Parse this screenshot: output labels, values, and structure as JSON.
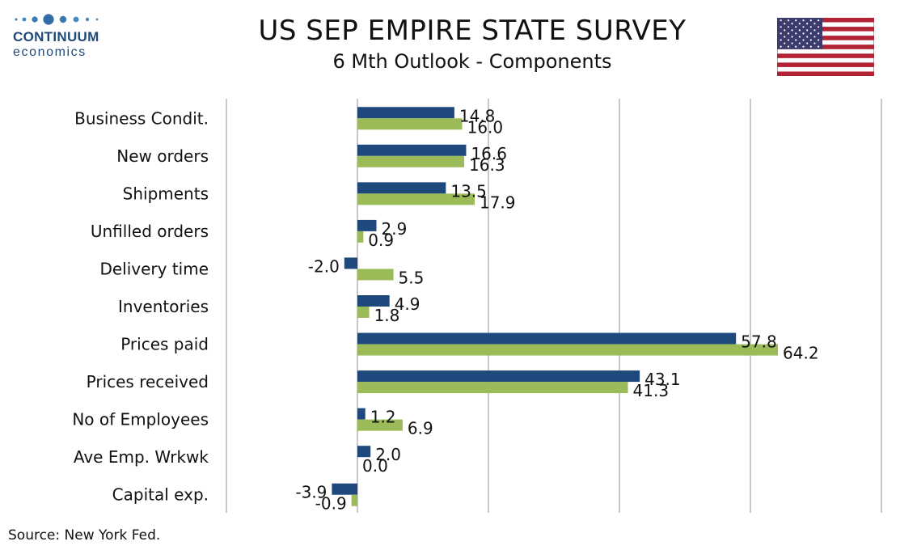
{
  "logo": {
    "word": "CONTINUUM",
    "sub": "economics"
  },
  "source": "Source: New York Fed.",
  "flag_icon": "us-flag-icon",
  "colors": {
    "series1": "#1f497d",
    "series2": "#9bbb59",
    "grid": "#c8c8c8"
  },
  "chart_data": {
    "type": "bar",
    "orientation": "horizontal",
    "title": "US SEP EMPIRE STATE SURVEY",
    "subtitle": "6 Mth Outlook - Components",
    "categories": [
      "Business Condit.",
      "New orders ",
      "Shipments ",
      "Unfilled orders",
      "Delivery time",
      "Inventories",
      "Prices paid",
      "Prices received",
      "No of Employees",
      "Ave Emp. Wrkwk",
      "Capital exp."
    ],
    "series": [
      {
        "values": [
          14.8,
          16.6,
          13.5,
          2.9,
          -2.0,
          4.9,
          57.8,
          43.1,
          1.2,
          2.0,
          -3.9
        ]
      },
      {
        "values": [
          16.0,
          16.3,
          17.9,
          0.9,
          5.5,
          1.8,
          64.2,
          41.3,
          6.9,
          0.0,
          -0.9
        ]
      }
    ],
    "labels": [
      [
        "14.8",
        "16.6",
        "13.5",
        "2.9",
        "-2.0",
        "4.9",
        "57.8",
        "43.1",
        "1.2",
        "2.0",
        "-3.9"
      ],
      [
        "16.0",
        "16.3",
        "17.9",
        "0.9",
        "5.5",
        "1.8",
        "64.2",
        "41.3",
        "6.9",
        "0.0",
        "-0.9"
      ]
    ],
    "xlim": [
      -20,
      80
    ],
    "grid": true,
    "legend": "none"
  }
}
